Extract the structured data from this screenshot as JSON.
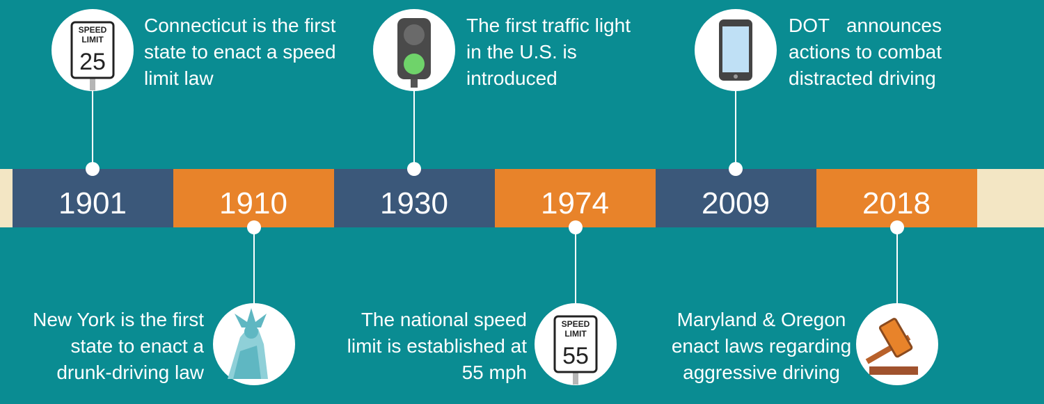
{
  "events": [
    {
      "year": "1901",
      "text": "Connecticut is the first state to enact a speed limit law",
      "sign": [
        "SPEED",
        "LIMIT",
        "25"
      ]
    },
    {
      "year": "1910",
      "text": "New York is the first state to enact a drunk-driving law"
    },
    {
      "year": "1930",
      "text": "The first traffic light in the U.S. is introduced"
    },
    {
      "year": "1974",
      "text": "The national speed limit is established at 55 mph",
      "sign": [
        "SPEED",
        "LIMIT",
        "55"
      ]
    },
    {
      "year": "2009",
      "text": "DOT announces actions to combat distracted driving"
    },
    {
      "year": "2018",
      "text": "Maryland & Oregon enact laws regarding aggressive driving"
    }
  ]
}
